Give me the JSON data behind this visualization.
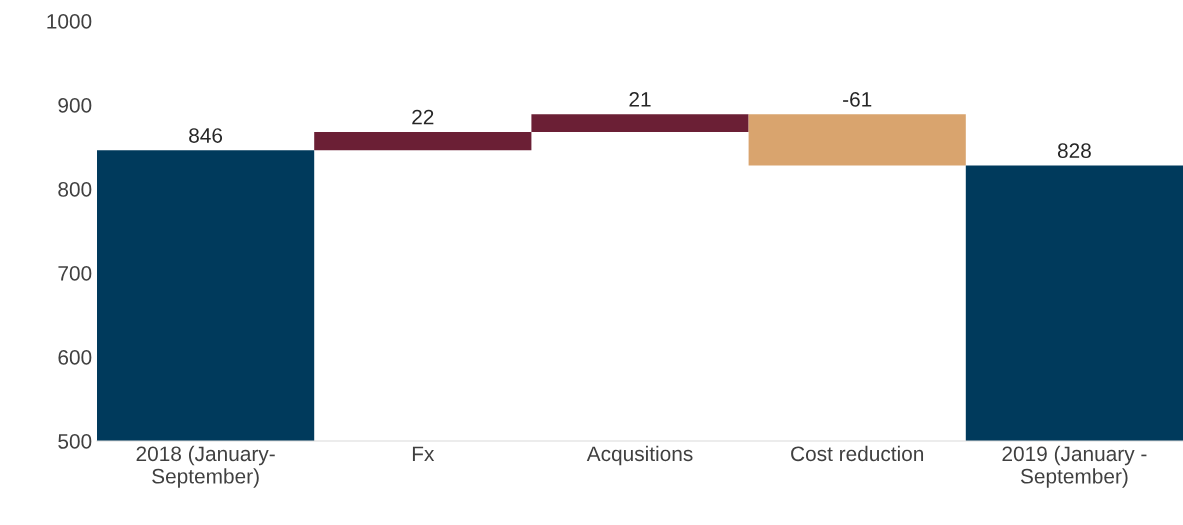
{
  "chart_data": {
    "type": "bar",
    "categories": [
      "2018 (January-\nSeptember)",
      "Fx",
      "Acqusitions",
      "Cost reduction",
      "2019 (January -\nSeptember)"
    ],
    "values": [
      846,
      22,
      21,
      -61,
      828
    ],
    "base": [
      null,
      846,
      868,
      889,
      null
    ],
    "colors": [
      "#003a5c",
      "#6b1f35",
      "#6b1f35",
      "#d9a46e",
      "#003a5c"
    ],
    "ylim": [
      500,
      1000
    ],
    "yticks": [
      500,
      600,
      700,
      800,
      900,
      1000
    ],
    "data_labels": true,
    "grid": false,
    "legend": false
  }
}
